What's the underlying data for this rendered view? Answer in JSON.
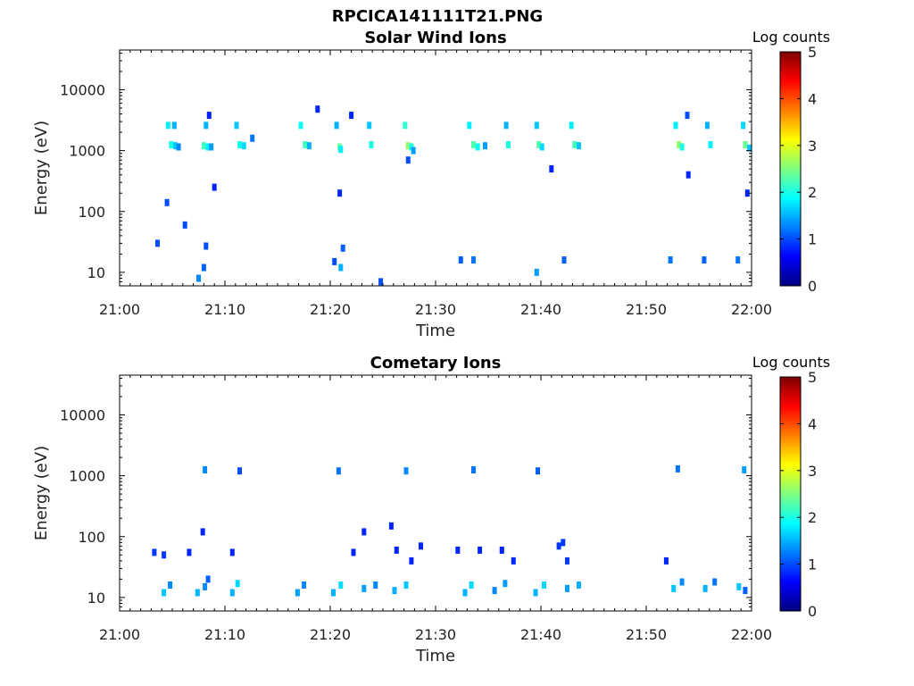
{
  "figure": {
    "title": "RPCICA141111T21.PNG",
    "colorbar_scale": [
      "#00007f",
      "#0000ff",
      "#007fff",
      "#00ffff",
      "#7fff7f",
      "#ffff00",
      "#ff7f00",
      "#ff0000",
      "#7f0000"
    ]
  },
  "chart_data": [
    {
      "type": "heatmap",
      "title": "Solar Wind Ions",
      "xlabel": "Time",
      "ylabel": "Energy (eV)",
      "yscale": "log",
      "ylim": [
        6,
        45000
      ],
      "xlim_minutes": [
        0,
        60
      ],
      "x_tick_labels": [
        "21:00",
        "21:10",
        "21:20",
        "21:30",
        "21:40",
        "21:50",
        "22:00"
      ],
      "y_ticks": [
        10,
        100,
        1000,
        10000
      ],
      "y_tick_labels": [
        "10",
        "100",
        "1000",
        "10000"
      ],
      "colorbar": {
        "label": "Log counts",
        "range": [
          0,
          5
        ],
        "ticks": [
          "0",
          "1",
          "2",
          "3",
          "4",
          "5"
        ]
      },
      "series": [
        {
          "values": [
            [
              4.6,
              2600,
              1.8
            ],
            [
              5.2,
              2600,
              1.5
            ],
            [
              4.9,
              1250,
              2.0
            ],
            [
              5.3,
              1200,
              1.6
            ],
            [
              5.6,
              1150,
              1.3
            ],
            [
              8.0,
              1200,
              2.2
            ],
            [
              8.4,
              1150,
              1.8
            ],
            [
              8.7,
              1150,
              1.4
            ],
            [
              8.2,
              2600,
              1.5
            ],
            [
              8.5,
              3800,
              0.8
            ],
            [
              11.1,
              2600,
              1.6
            ],
            [
              11.4,
              1250,
              2.0
            ],
            [
              11.8,
              1200,
              1.7
            ],
            [
              12.6,
              1600,
              1.2
            ],
            [
              17.2,
              2600,
              1.9
            ],
            [
              17.6,
              1250,
              2.2
            ],
            [
              18.0,
              1200,
              1.5
            ],
            [
              18.8,
              4800,
              0.8
            ],
            [
              20.6,
              2600,
              1.5
            ],
            [
              20.9,
              1150,
              2.4
            ],
            [
              21.0,
              1050,
              1.8
            ],
            [
              22.0,
              3800,
              0.8
            ],
            [
              23.7,
              2600,
              1.6
            ],
            [
              23.9,
              1250,
              2.0
            ],
            [
              27.1,
              2600,
              2.1
            ],
            [
              27.4,
              1200,
              2.6
            ],
            [
              27.7,
              1150,
              2.0
            ],
            [
              27.9,
              1000,
              1.4
            ],
            [
              27.4,
              700,
              1.0
            ],
            [
              33.2,
              2600,
              1.8
            ],
            [
              33.6,
              1250,
              2.3
            ],
            [
              34.0,
              1150,
              1.9
            ],
            [
              34.7,
              1200,
              1.4
            ],
            [
              36.7,
              2600,
              1.5
            ],
            [
              36.9,
              1250,
              2.0
            ],
            [
              39.6,
              2600,
              1.6
            ],
            [
              39.8,
              1250,
              2.3
            ],
            [
              40.1,
              1150,
              1.7
            ],
            [
              42.9,
              2600,
              1.8
            ],
            [
              43.2,
              1250,
              2.2
            ],
            [
              43.6,
              1200,
              1.6
            ],
            [
              52.8,
              2600,
              1.8
            ],
            [
              53.1,
              1250,
              2.6
            ],
            [
              53.4,
              1150,
              2.0
            ],
            [
              53.9,
              3800,
              1.0
            ],
            [
              55.8,
              2600,
              1.5
            ],
            [
              56.1,
              1250,
              1.8
            ],
            [
              59.2,
              2600,
              1.7
            ],
            [
              59.4,
              1250,
              2.4
            ],
            [
              59.8,
              1100,
              1.6
            ],
            [
              3.6,
              30,
              1.0
            ],
            [
              4.5,
              140,
              1.0
            ],
            [
              6.2,
              60,
              1.0
            ],
            [
              7.5,
              8,
              1.3
            ],
            [
              8.0,
              12,
              1.1
            ],
            [
              8.2,
              27,
              1.0
            ],
            [
              21.0,
              12,
              1.5
            ],
            [
              21.2,
              25,
              1.1
            ],
            [
              20.4,
              15,
              1.0
            ],
            [
              24.8,
              7,
              1.0
            ],
            [
              32.4,
              16,
              1.1
            ],
            [
              33.6,
              16,
              1.2
            ],
            [
              39.6,
              10,
              1.4
            ],
            [
              42.2,
              16,
              1.1
            ],
            [
              52.3,
              16,
              1.2
            ],
            [
              55.5,
              16,
              1.1
            ],
            [
              58.7,
              16,
              1.2
            ],
            [
              9.0,
              250,
              0.8
            ],
            [
              20.9,
              200,
              0.8
            ],
            [
              41.0,
              500,
              0.8
            ],
            [
              54.0,
              400,
              0.8
            ],
            [
              59.6,
              200,
              0.8
            ]
          ]
        }
      ]
    },
    {
      "type": "heatmap",
      "title": "Cometary Ions",
      "xlabel": "Time",
      "ylabel": "Energy (eV)",
      "yscale": "log",
      "ylim": [
        6,
        45000
      ],
      "xlim_minutes": [
        0,
        60
      ],
      "x_tick_labels": [
        "21:00",
        "21:10",
        "21:20",
        "21:30",
        "21:40",
        "21:50",
        "22:00"
      ],
      "y_ticks": [
        10,
        100,
        1000,
        10000
      ],
      "y_tick_labels": [
        "10",
        "100",
        "1000",
        "10000"
      ],
      "colorbar": {
        "label": "Log counts",
        "range": [
          0,
          5
        ],
        "ticks": [
          "0",
          "1",
          "2",
          "3",
          "4",
          "5"
        ]
      },
      "series": [
        {
          "values": [
            [
              8.1,
              1250,
              1.3
            ],
            [
              11.4,
              1200,
              1.0
            ],
            [
              20.8,
              1200,
              1.2
            ],
            [
              27.2,
              1200,
              1.3
            ],
            [
              33.6,
              1250,
              1.2
            ],
            [
              39.7,
              1200,
              1.1
            ],
            [
              53.0,
              1300,
              1.2
            ],
            [
              59.3,
              1250,
              1.4
            ],
            [
              3.3,
              55,
              0.9
            ],
            [
              4.2,
              50,
              0.9
            ],
            [
              6.6,
              55,
              0.8
            ],
            [
              7.9,
              120,
              0.8
            ],
            [
              10.7,
              55,
              0.8
            ],
            [
              22.2,
              55,
              0.8
            ],
            [
              23.2,
              120,
              0.8
            ],
            [
              25.8,
              150,
              0.8
            ],
            [
              26.3,
              60,
              0.8
            ],
            [
              27.7,
              40,
              0.8
            ],
            [
              28.6,
              70,
              0.8
            ],
            [
              32.1,
              60,
              0.8
            ],
            [
              34.2,
              60,
              0.8
            ],
            [
              36.3,
              60,
              0.8
            ],
            [
              37.4,
              40,
              0.8
            ],
            [
              41.7,
              70,
              0.9
            ],
            [
              42.1,
              80,
              0.9
            ],
            [
              42.5,
              40,
              0.9
            ],
            [
              51.9,
              40,
              0.8
            ],
            [
              4.2,
              12,
              1.6
            ],
            [
              4.8,
              16,
              1.3
            ],
            [
              7.4,
              12,
              1.5
            ],
            [
              8.1,
              15,
              1.3
            ],
            [
              8.4,
              20,
              1.1
            ],
            [
              10.7,
              12,
              1.5
            ],
            [
              11.2,
              17,
              1.7
            ],
            [
              16.9,
              12,
              1.4
            ],
            [
              17.5,
              16,
              1.3
            ],
            [
              20.3,
              12,
              1.5
            ],
            [
              21.0,
              16,
              1.7
            ],
            [
              23.2,
              14,
              1.4
            ],
            [
              24.3,
              16,
              1.3
            ],
            [
              26.1,
              13,
              1.5
            ],
            [
              27.2,
              16,
              1.6
            ],
            [
              32.8,
              12,
              1.5
            ],
            [
              33.4,
              16,
              1.7
            ],
            [
              35.6,
              13,
              1.3
            ],
            [
              36.6,
              17,
              1.4
            ],
            [
              39.5,
              12,
              1.5
            ],
            [
              40.3,
              16,
              1.7
            ],
            [
              42.5,
              14,
              1.4
            ],
            [
              43.6,
              16,
              1.5
            ],
            [
              52.6,
              14,
              1.6
            ],
            [
              53.4,
              18,
              1.3
            ],
            [
              55.6,
              14,
              1.5
            ],
            [
              56.5,
              18,
              1.2
            ],
            [
              58.8,
              15,
              1.6
            ],
            [
              59.4,
              13,
              1.1
            ]
          ]
        }
      ]
    }
  ]
}
